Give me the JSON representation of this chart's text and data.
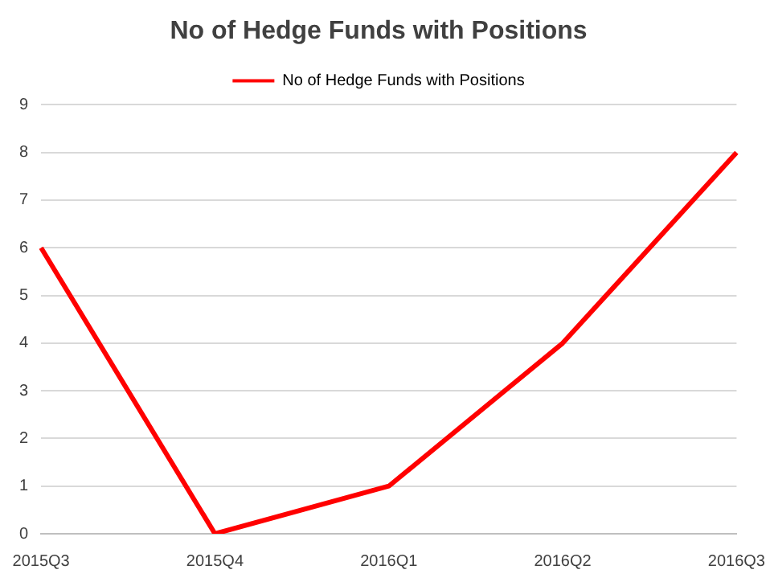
{
  "chart_data": {
    "type": "line",
    "title": "No of Hedge Funds with Positions",
    "categories": [
      "2015Q3",
      "2015Q4",
      "2016Q1",
      "2016Q2",
      "2016Q3"
    ],
    "series": [
      {
        "name": "No of Hedge Funds with Positions",
        "color": "#ff0000",
        "values": [
          6,
          0,
          1,
          4,
          8
        ]
      }
    ],
    "ylim": [
      0,
      9
    ],
    "yticks": [
      0,
      1,
      2,
      3,
      4,
      5,
      6,
      7,
      8,
      9
    ],
    "grid": "y",
    "legend": "top",
    "marker": "none",
    "line_style": "solid"
  }
}
